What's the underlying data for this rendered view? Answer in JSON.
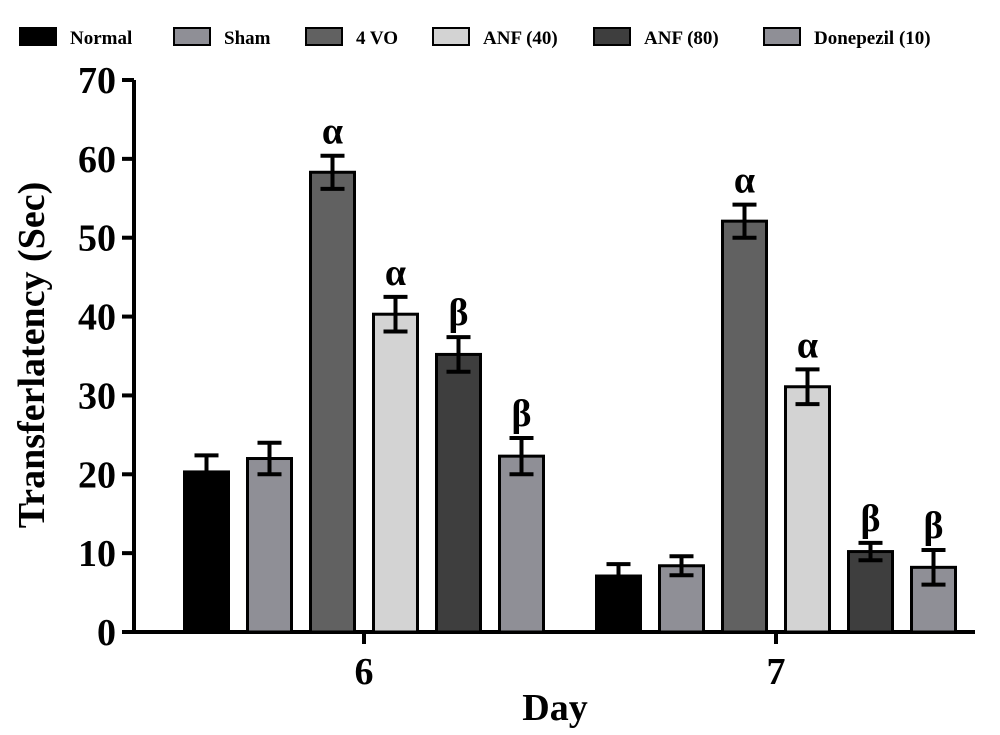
{
  "chart_data": {
    "type": "bar",
    "title": "",
    "xlabel": "Day",
    "ylabel": "Transferlatency (Sec)",
    "ylim": [
      0,
      70
    ],
    "yticks": [
      0,
      10,
      20,
      30,
      40,
      50,
      60,
      70
    ],
    "categories": [
      "6",
      "7"
    ],
    "grid": false,
    "legend_position": "top",
    "series": [
      {
        "name": "Normal",
        "color": "#000000",
        "values": [
          20.3,
          7.1
        ],
        "errors": [
          2.1,
          1.5
        ],
        "annotations": [
          "",
          ""
        ]
      },
      {
        "name": "Sham",
        "color": "#8f8f96",
        "values": [
          22.0,
          8.4
        ],
        "errors": [
          2.0,
          1.2
        ],
        "annotations": [
          "",
          ""
        ]
      },
      {
        "name": "4 VO",
        "color": "#616161",
        "values": [
          58.3,
          52.1
        ],
        "errors": [
          2.1,
          2.1
        ],
        "annotations": [
          "α",
          "α"
        ]
      },
      {
        "name": "ANF (40)",
        "color": "#d3d3d3",
        "values": [
          40.3,
          31.1
        ],
        "errors": [
          2.2,
          2.2
        ],
        "annotations": [
          "α",
          "α"
        ]
      },
      {
        "name": "ANF (80)",
        "color": "#3e3e3e",
        "values": [
          35.2,
          10.2
        ],
        "errors": [
          2.2,
          1.1
        ],
        "annotations": [
          "β",
          "β"
        ]
      },
      {
        "name": "Donepezil (10)",
        "color": "#8f8f96",
        "values": [
          22.3,
          8.2
        ],
        "errors": [
          2.3,
          2.2
        ],
        "annotations": [
          "β",
          "β"
        ]
      }
    ]
  }
}
